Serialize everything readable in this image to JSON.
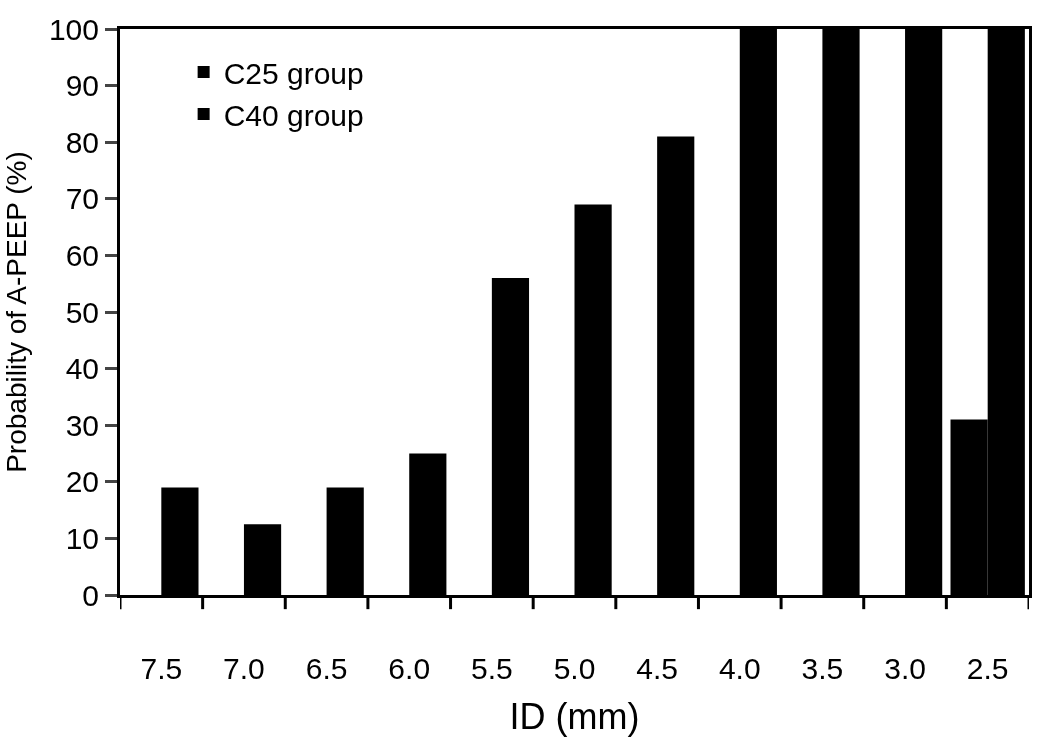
{
  "chart_data": {
    "type": "bar",
    "xlabel": "ID (mm)",
    "ylabel": "Probability of A-PEEP (%)",
    "categories": [
      "7.5",
      "7.0",
      "6.5",
      "6.0",
      "5.5",
      "5.0",
      "4.5",
      "4.0",
      "3.5",
      "3.0",
      "2.5"
    ],
    "series": [
      {
        "name": "C25 group",
        "color": "#000000",
        "values": [
          0,
          0,
          0,
          0,
          0,
          0,
          0,
          0,
          0,
          0,
          31
        ]
      },
      {
        "name": "C40 group",
        "color": "#000000",
        "values": [
          19,
          12.5,
          19,
          25,
          56,
          69,
          81,
          100,
          100,
          100,
          100
        ]
      }
    ],
    "ylim": [
      0,
      100
    ],
    "yticks": [
      0,
      10,
      20,
      30,
      40,
      50,
      60,
      70,
      80,
      90,
      100
    ],
    "legend": "top left"
  }
}
